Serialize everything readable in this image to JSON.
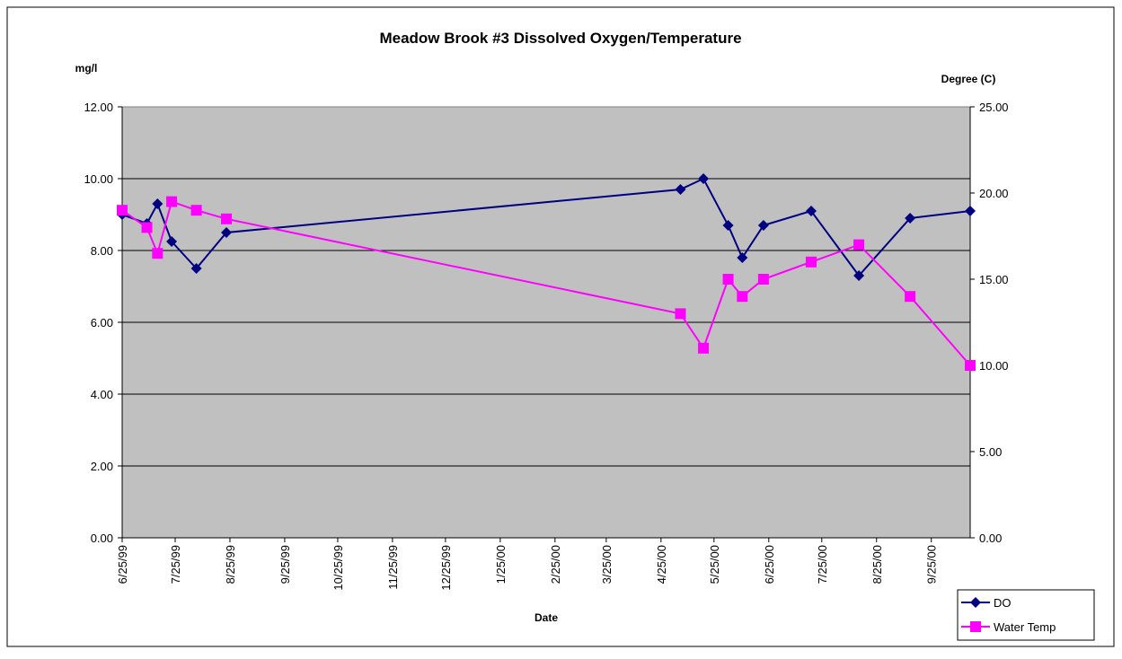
{
  "chart_data": {
    "type": "line",
    "title": "Meadow Brook #3 Dissolved Oxygen/Temperature",
    "ylabel": "mg/l",
    "y2label": "Degree (C)",
    "xlabel": "Date",
    "x": [
      "6/25/99",
      "7/9/99",
      "7/15/99",
      "7/23/99",
      "8/6/99",
      "8/23/99",
      "5/6/00",
      "5/19/00",
      "6/2/00",
      "6/10/00",
      "6/22/00",
      "7/19/00",
      "8/15/00",
      "9/13/00",
      "10/17/00"
    ],
    "series": [
      {
        "name": "DO",
        "color": "#000080",
        "marker": "diamond",
        "values": [
          9.0,
          8.75,
          9.3,
          8.25,
          7.5,
          8.5,
          9.7,
          10.0,
          8.7,
          7.8,
          8.7,
          9.1,
          7.3,
          8.9,
          9.1
        ]
      },
      {
        "name": "Water Temp",
        "color": "#ff00ff",
        "marker": "square",
        "axis": "y2",
        "values": [
          19.0,
          18.0,
          16.5,
          19.5,
          19.0,
          18.5,
          13.0,
          11.0,
          15.0,
          14.0,
          15.0,
          16.0,
          17.0,
          14.0,
          10.0
        ]
      }
    ],
    "xlim": [
      "6/25/99",
      "10/17/00"
    ],
    "xticks": [
      "6/25/99",
      "7/25/99",
      "8/25/99",
      "9/25/99",
      "10/25/99",
      "11/25/99",
      "12/25/99",
      "1/25/00",
      "2/25/00",
      "3/25/00",
      "4/25/00",
      "5/25/00",
      "6/25/00",
      "7/25/00",
      "8/25/00",
      "9/25/00"
    ],
    "ylim": [
      0,
      12
    ],
    "yticks": [
      {
        "value": 0,
        "label": "0.00"
      },
      {
        "value": 2,
        "label": "2.00"
      },
      {
        "value": 4,
        "label": "4.00"
      },
      {
        "value": 6,
        "label": "6.00"
      },
      {
        "value": 8,
        "label": "8.00"
      },
      {
        "value": 10,
        "label": "10.00"
      },
      {
        "value": 12,
        "label": "12.00"
      }
    ],
    "y2lim": [
      0,
      25
    ],
    "y2ticks": [
      {
        "value": 0,
        "label": "0.00"
      },
      {
        "value": 5,
        "label": "5.00"
      },
      {
        "value": 10,
        "label": "10.00"
      },
      {
        "value": 15,
        "label": "15.00"
      },
      {
        "value": 20,
        "label": "20.00"
      },
      {
        "value": 25,
        "label": "25.00"
      }
    ],
    "grid": true,
    "plot_background": "#c0c0c0",
    "legend": "bottom-right"
  }
}
